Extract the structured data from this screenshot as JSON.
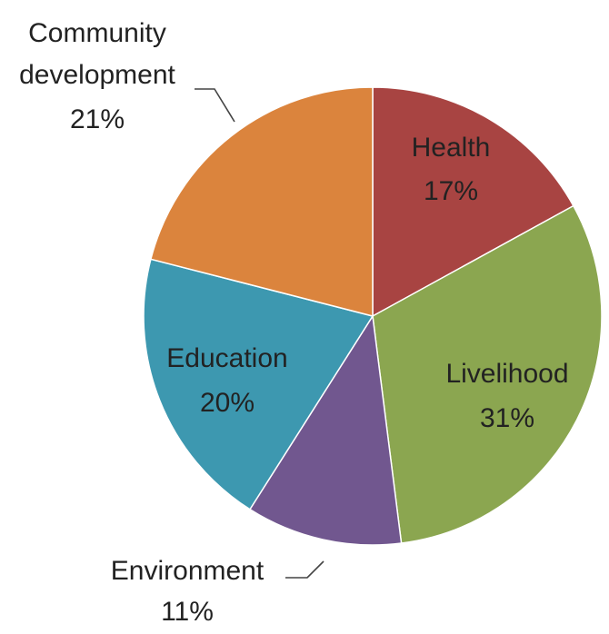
{
  "chart_data": {
    "type": "pie",
    "start": "12 o'clock",
    "direction": "clockwise",
    "slices": [
      {
        "name": "Health",
        "pct_label": "17%",
        "value": 17,
        "color": "#A84442"
      },
      {
        "name": "Livelihood",
        "pct_label": "31%",
        "value": 31,
        "color": "#8BA650"
      },
      {
        "name": "Environment",
        "pct_label": "11%",
        "value": 11,
        "color": "#71578F"
      },
      {
        "name": "Education",
        "pct_label": "20%",
        "value": 20,
        "color": "#3D98B0"
      },
      {
        "name": "Community",
        "name_line2": "development",
        "pct_label": "21%",
        "value": 21,
        "color": "#DB843D"
      }
    ],
    "legend": "none",
    "data_labels": "name and percent"
  }
}
